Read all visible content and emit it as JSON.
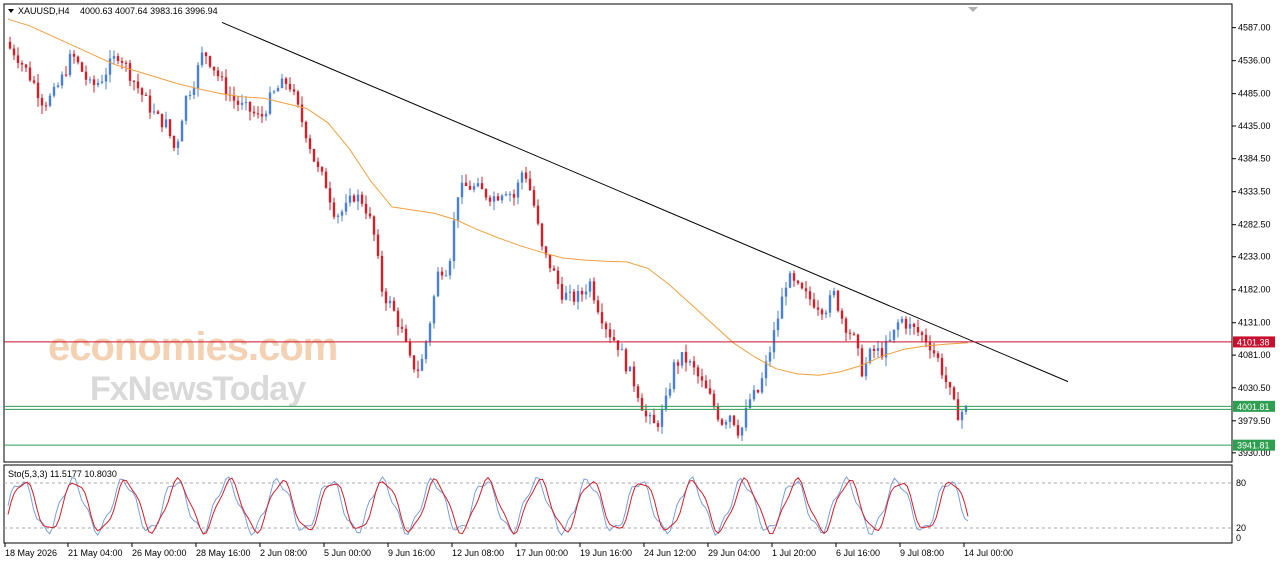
{
  "header": {
    "symbol": "XAUUSD,H4",
    "ohlc": "4000.63 4007.64 3983.16 3996.94"
  },
  "watermark": {
    "brand1": "economies.com",
    "brand2": "FxNewsToday"
  },
  "price_axis": {
    "ticks": [
      "4587.00",
      "4536.00",
      "4485.00",
      "4435.00",
      "4384.50",
      "4333.50",
      "4282.50",
      "4233.00",
      "4182.00",
      "4131.00",
      "4081.00",
      "4030.50",
      "3979.50",
      "3930.00"
    ]
  },
  "levels": {
    "resistance": {
      "label": "4101.38",
      "value": 4101.38,
      "color": "#c8102e"
    },
    "current": {
      "label": "4001.81",
      "value": 4001.81,
      "color": "#2e9e50"
    },
    "support": {
      "label": "3941.81",
      "value": 3941.81,
      "color": "#2e9e50"
    }
  },
  "time_axis": {
    "labels": [
      "18 May 2026",
      "21 May 04:00",
      "26 May 00:00",
      "28 May 16:00",
      "2 Jun 08:00",
      "5 Jun 00:00",
      "9 Jun 16:00",
      "12 Jun 08:00",
      "17 Jun 00:00",
      "19 Jun 16:00",
      "24 Jun 12:00",
      "29 Jun 04:00",
      "1 Jul 20:00",
      "6 Jul 16:00",
      "9 Jul 08:00",
      "14 Jul 00:00"
    ]
  },
  "stochastic": {
    "label": "Sto(5,3,3) 11.5177 10.8030",
    "levels": [
      "80",
      "20",
      "0"
    ]
  },
  "colors": {
    "bull": "#4a7fd4",
    "bear": "#d0202a",
    "ma": "#f0a040",
    "trendline": "#000000",
    "stoch_main": "#7aa0d8",
    "stoch_signal": "#d0202a"
  },
  "chart_data": {
    "type": "candlestick",
    "ylim": [
      3922,
      4605
    ],
    "close_path": [
      4560,
      4548,
      4525,
      4500,
      4470,
      4482,
      4510,
      4545,
      4522,
      4495,
      4505,
      4528,
      4548,
      4520,
      4495,
      4470,
      4448,
      4438,
      4395,
      4475,
      4505,
      4552,
      4528,
      4500,
      4478,
      4465,
      4458,
      4445,
      4475,
      4495,
      4505,
      4462,
      4420,
      4370,
      4345,
      4298,
      4305,
      4328,
      4318,
      4275,
      4178,
      4155,
      4120,
      4068,
      4058,
      4130,
      4215,
      4215,
      4332,
      4342,
      4338,
      4330,
      4325,
      4340,
      4325,
      4372,
      4320,
      4240,
      4215,
      4178,
      4168,
      4172,
      4195,
      4152,
      4118,
      4098,
      4062,
      4030,
      3985,
      3970,
      4000,
      4065,
      4078,
      4060,
      4035,
      4010,
      3978,
      3992,
      3958,
      4012,
      4025,
      4078,
      4138,
      4202,
      4185,
      4172,
      4162,
      4152,
      4175,
      4132,
      4110,
      4055,
      4088,
      4085,
      4102,
      4138,
      4125,
      4115,
      4102,
      4075,
      4035,
      3990,
      3996.94
    ],
    "trendline": {
      "start_price": 4595,
      "end_price": 4040
    },
    "moving_average": [
      4600,
      4590,
      4575,
      4560,
      4545,
      4530,
      4520,
      4510,
      4500,
      4492,
      4485,
      4480,
      4478,
      4470,
      4462,
      4440,
      4400,
      4350,
      4310,
      4305,
      4300,
      4290,
      4275,
      4262,
      4250,
      4240,
      4231,
      4228,
      4226,
      4225,
      4215,
      4190,
      4160,
      4130,
      4100,
      4078,
      4060,
      4052,
      4050,
      4055,
      4065,
      4080,
      4090,
      4095,
      4098,
      4100
    ]
  }
}
